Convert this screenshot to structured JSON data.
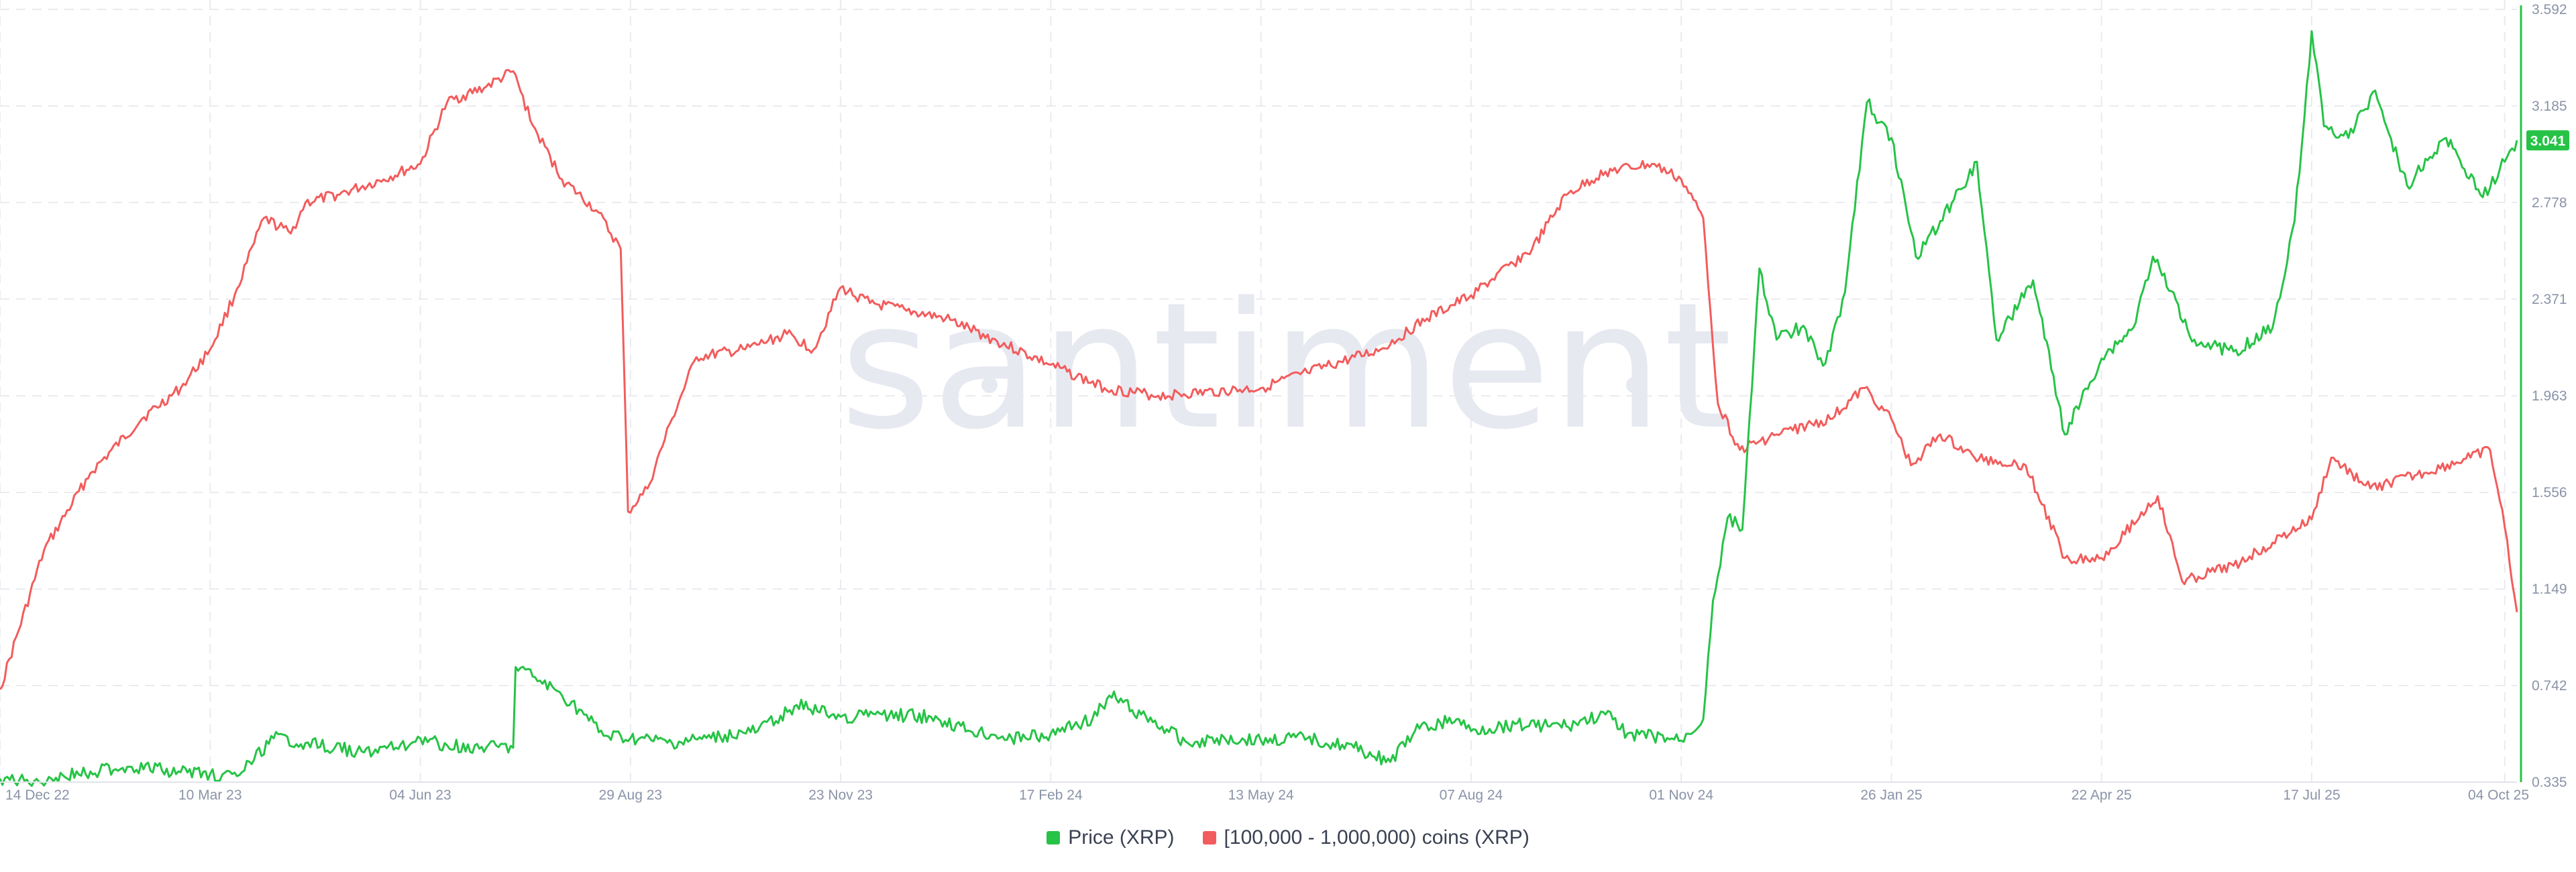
{
  "watermark": "santiment",
  "colors": {
    "price": "#26c346",
    "holders": "#f25c5c",
    "grid": "#e9ebf0",
    "axis_text": "#8a93a7",
    "badge_bg": "#26c346",
    "badge_text": "#ffffff"
  },
  "chart_data": {
    "type": "line",
    "x_ticks": [
      "14 Dec 22",
      "10 Mar 23",
      "04 Jun 23",
      "29 Aug 23",
      "23 Nov 23",
      "17 Feb 24",
      "13 May 24",
      "07 Aug 24",
      "01 Nov 24",
      "26 Jan 25",
      "22 Apr 25",
      "17 Jul 25",
      "04 Oct 25"
    ],
    "x_range": [
      "14 Dec 22",
      "09 Oct 25"
    ],
    "y_right_ticks": [
      "3.592",
      "3.185",
      "2.778",
      "2.371",
      "1.963",
      "1.556",
      "1.149",
      "0.742",
      "0.335"
    ],
    "y_right_range": [
      0.335,
      3.592
    ],
    "current_price_label": "3.041",
    "grid": true,
    "legend_position": "bottom-center",
    "series": [
      {
        "name": "Price (XRP)",
        "axis": "right",
        "unit": "USD",
        "points": [
          [
            "14 Dec 22",
            0.35
          ],
          [
            "24 Dec 22",
            0.34
          ],
          [
            "04 Jan 23",
            0.35
          ],
          [
            "20 Jan 23",
            0.38
          ],
          [
            "05 Feb 23",
            0.4
          ],
          [
            "25 Feb 23",
            0.38
          ],
          [
            "10 Mar 23",
            0.37
          ],
          [
            "21 Mar 23",
            0.36
          ],
          [
            "28 Mar 23",
            0.43
          ],
          [
            "05 Apr 23",
            0.52
          ],
          [
            "18 Apr 23",
            0.5
          ],
          [
            "30 Apr 23",
            0.48
          ],
          [
            "12 May 23",
            0.46
          ],
          [
            "25 May 23",
            0.48
          ],
          [
            "04 Jun 23",
            0.52
          ],
          [
            "15 Jun 23",
            0.49
          ],
          [
            "01 Jul 23",
            0.48
          ],
          [
            "12 Jul 23",
            0.48
          ],
          [
            "13 Jul 23",
            0.82
          ],
          [
            "20 Jul 23",
            0.78
          ],
          [
            "01 Aug 23",
            0.7
          ],
          [
            "10 Aug 23",
            0.62
          ],
          [
            "18 Aug 23",
            0.53
          ],
          [
            "29 Aug 23",
            0.52
          ],
          [
            "15 Sep 23",
            0.5
          ],
          [
            "01 Oct 23",
            0.52
          ],
          [
            "20 Oct 23",
            0.55
          ],
          [
            "05 Nov 23",
            0.66
          ],
          [
            "23 Nov 23",
            0.61
          ],
          [
            "10 Dec 23",
            0.62
          ],
          [
            "30 Dec 23",
            0.61
          ],
          [
            "15 Jan 24",
            0.55
          ],
          [
            "01 Feb 24",
            0.52
          ],
          [
            "17 Feb 24",
            0.54
          ],
          [
            "05 Mar 24",
            0.6
          ],
          [
            "12 Mar 24",
            0.7
          ],
          [
            "25 Mar 24",
            0.62
          ],
          [
            "13 Apr 24",
            0.5
          ],
          [
            "25 Apr 24",
            0.52
          ],
          [
            "13 May 24",
            0.51
          ],
          [
            "01 Jun 24",
            0.52
          ],
          [
            "20 Jun 24",
            0.48
          ],
          [
            "05 Jul 24",
            0.42
          ],
          [
            "15 Jul 24",
            0.55
          ],
          [
            "01 Aug 24",
            0.6
          ],
          [
            "07 Aug 24",
            0.55
          ],
          [
            "25 Aug 24",
            0.58
          ],
          [
            "15 Sep 24",
            0.57
          ],
          [
            "01 Oct 24",
            0.62
          ],
          [
            "10 Oct 24",
            0.54
          ],
          [
            "01 Nov 24",
            0.51
          ],
          [
            "10 Nov 24",
            0.6
          ],
          [
            "14 Nov 24",
            1.1
          ],
          [
            "20 Nov 24",
            1.45
          ],
          [
            "26 Nov 24",
            1.4
          ],
          [
            "03 Dec 24",
            2.5
          ],
          [
            "10 Dec 24",
            2.2
          ],
          [
            "20 Dec 24",
            2.25
          ],
          [
            "30 Dec 24",
            2.1
          ],
          [
            "07 Jan 25",
            2.4
          ],
          [
            "16 Jan 25",
            3.2
          ],
          [
            "26 Jan 25",
            3.05
          ],
          [
            "05 Feb 25",
            2.55
          ],
          [
            "15 Feb 25",
            2.7
          ],
          [
            "02 Mar 25",
            2.95
          ],
          [
            "10 Mar 25",
            2.2
          ],
          [
            "25 Mar 25",
            2.45
          ],
          [
            "07 Apr 25",
            1.8
          ],
          [
            "22 Apr 25",
            2.12
          ],
          [
            "05 May 25",
            2.25
          ],
          [
            "13 May 25",
            2.55
          ],
          [
            "30 May 25",
            2.2
          ],
          [
            "15 Jun 25",
            2.15
          ],
          [
            "01 Jul 25",
            2.25
          ],
          [
            "10 Jul 25",
            2.7
          ],
          [
            "17 Jul 25",
            3.5
          ],
          [
            "22 Jul 25",
            3.1
          ],
          [
            "01 Aug 25",
            3.05
          ],
          [
            "12 Aug 25",
            3.25
          ],
          [
            "25 Aug 25",
            2.85
          ],
          [
            "10 Sep 25",
            3.05
          ],
          [
            "25 Sep 25",
            2.8
          ],
          [
            "04 Oct 25",
            2.95
          ],
          [
            "09 Oct 25",
            3.04
          ]
        ]
      },
      {
        "name": "[100,000  - 1,000,000) coins (XRP)",
        "axis": "hidden",
        "unit": "holders",
        "display_range": [
          0,
          100
        ],
        "points": [
          [
            "14 Dec 22",
            12
          ],
          [
            "01 Jan 23",
            30
          ],
          [
            "20 Jan 23",
            40
          ],
          [
            "10 Feb 23",
            47
          ],
          [
            "26 Feb 23",
            51
          ],
          [
            "10 Mar 23",
            56
          ],
          [
            "20 Mar 23",
            63
          ],
          [
            "01 Apr 23",
            73
          ],
          [
            "12 Apr 23",
            71
          ],
          [
            "18 Apr 23",
            75
          ],
          [
            "01 May 23",
            76
          ],
          [
            "20 May 23",
            78
          ],
          [
            "04 Jun 23",
            80
          ],
          [
            "15 Jun 23",
            88
          ],
          [
            "01 Jul 23",
            90
          ],
          [
            "12 Jul 23",
            92
          ],
          [
            "20 Jul 23",
            85
          ],
          [
            "01 Aug 23",
            78
          ],
          [
            "15 Aug 23",
            74
          ],
          [
            "25 Aug 23",
            69
          ],
          [
            "28 Aug 23",
            35
          ],
          [
            "05 Sep 23",
            38
          ],
          [
            "15 Sep 23",
            47
          ],
          [
            "25 Sep 23",
            55
          ],
          [
            "15 Oct 23",
            56
          ],
          [
            "01 Nov 23",
            58
          ],
          [
            "12 Nov 23",
            56
          ],
          [
            "23 Nov 23",
            64
          ],
          [
            "05 Dec 23",
            62
          ],
          [
            "20 Dec 23",
            61
          ],
          [
            "05 Jan 24",
            60
          ],
          [
            "17 Feb 24",
            54
          ],
          [
            "10 Mar 24",
            51
          ],
          [
            "01 Apr 24",
            50
          ],
          [
            "13 May 24",
            51
          ],
          [
            "01 Jun 24",
            53
          ],
          [
            "01 Jul 24",
            56
          ],
          [
            "20 Jul 24",
            60
          ],
          [
            "07 Aug 24",
            63
          ],
          [
            "01 Sep 24",
            69
          ],
          [
            "15 Sep 24",
            76
          ],
          [
            "01 Oct 24",
            79
          ],
          [
            "20 Oct 24",
            80
          ],
          [
            "01 Nov 24",
            78
          ],
          [
            "10 Nov 24",
            73
          ],
          [
            "16 Nov 24",
            49
          ],
          [
            "25 Nov 24",
            43
          ],
          [
            "10 Dec 24",
            45
          ],
          [
            "01 Jan 25",
            47
          ],
          [
            "15 Jan 25",
            51
          ],
          [
            "26 Jan 25",
            47
          ],
          [
            "03 Feb 25",
            41
          ],
          [
            "15 Feb 25",
            45
          ],
          [
            "01 Mar 25",
            42
          ],
          [
            "22 Mar 25",
            41
          ],
          [
            "07 Apr 25",
            29
          ],
          [
            "22 Apr 25",
            29
          ],
          [
            "15 May 25",
            37
          ],
          [
            "25 May 25",
            26
          ],
          [
            "15 Jun 25",
            28
          ],
          [
            "01 Jul 25",
            31
          ],
          [
            "17 Jul 25",
            34
          ],
          [
            "25 Jul 25",
            42
          ],
          [
            "10 Aug 25",
            38
          ],
          [
            "01 Sep 25",
            40
          ],
          [
            "20 Sep 25",
            42
          ],
          [
            "28 Sep 25",
            43
          ],
          [
            "04 Oct 25",
            33
          ],
          [
            "09 Oct 25",
            22
          ]
        ]
      }
    ]
  }
}
